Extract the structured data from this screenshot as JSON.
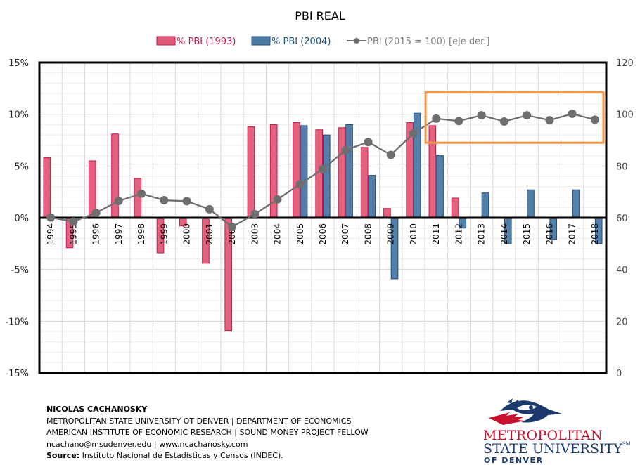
{
  "chart_data": {
    "type": "bar",
    "title": "PBI REAL",
    "xlabel": "",
    "ylabel": "",
    "y2label": "",
    "categories": [
      "1994",
      "1995",
      "1996",
      "1997",
      "1998",
      "1999",
      "2000",
      "2001",
      "2002",
      "2003",
      "2004",
      "2005",
      "2006",
      "2007",
      "2008",
      "2009",
      "2010",
      "2011",
      "2012",
      "2013",
      "2014",
      "2015",
      "2016",
      "2017",
      "2018"
    ],
    "series": [
      {
        "name": "% PBI (1993)",
        "type": "bar",
        "axis": "left",
        "color": "#E05A78",
        "border": "#C8194A",
        "values": [
          5.8,
          -2.9,
          5.5,
          8.1,
          3.8,
          -3.4,
          -0.8,
          -4.4,
          -10.9,
          8.8,
          9.0,
          9.2,
          8.5,
          8.7,
          6.8,
          0.9,
          9.2,
          8.9,
          1.9,
          null,
          null,
          null,
          null,
          null,
          null
        ]
      },
      {
        "name": "% PBI (2004)",
        "type": "bar",
        "axis": "left",
        "color": "#4A78A4",
        "border": "#1F4E79",
        "values": [
          null,
          null,
          null,
          null,
          null,
          null,
          null,
          null,
          null,
          null,
          null,
          8.9,
          8.0,
          9.0,
          4.1,
          -5.9,
          10.1,
          6.0,
          -1.0,
          2.4,
          -2.5,
          2.7,
          -2.1,
          2.7,
          -2.5
        ]
      },
      {
        "name": "PBI (2015 = 100) [eje der.]",
        "type": "line",
        "axis": "right",
        "color": "#6E6E6E",
        "marker": "circle",
        "values": [
          60.1,
          58.5,
          61.9,
          66.5,
          69.3,
          66.8,
          66.4,
          63.3,
          56.5,
          61.4,
          67.1,
          73.0,
          78.8,
          86.1,
          89.3,
          84.3,
          92.6,
          98.3,
          97.4,
          99.6,
          97.2,
          99.6,
          97.7,
          100.2,
          97.9
        ]
      }
    ],
    "ylim": [
      -15,
      15
    ],
    "yticks": [
      -15,
      -10,
      -5,
      0,
      5,
      10,
      15
    ],
    "ytick_labels": [
      "-15%",
      "-10%",
      "-5%",
      "0%",
      "5%",
      "10%",
      "15%"
    ],
    "y2lim": [
      0,
      120
    ],
    "y2ticks": [
      0,
      20,
      40,
      60,
      80,
      100,
      120
    ],
    "y2tick_labels": [
      "0",
      "20",
      "40",
      "60",
      "80",
      "100",
      "120"
    ],
    "grid": true,
    "minor_grid": true,
    "legend": "top-center",
    "annotations": [
      {
        "type": "rectangle",
        "color": "#F79646",
        "x_from": "2011",
        "x_to": "2018",
        "y2_from": 89,
        "y2_to": 108.5,
        "description": "highlight box around 2011-2018 index values"
      }
    ]
  },
  "footer": {
    "author": "NICOLAS CACHANOSKY",
    "line1": "METROPOLITAN  STATE UNIVERSITY  OT DENVER  | DEPARTMENT  OF ECONOMICS",
    "line2": "AMERICAN  INSTITUTE  OF ECONOMIC RESEARCH  | SOUND  MONEY  PROJECT FELLOW",
    "line3": "ncachano@msudenver.edu | www.ncachanosky.com",
    "source_label": "Source:",
    "source_text": " Instituto Nacional de Estadísticas y Censos (INDEC)."
  },
  "logo": {
    "word1": "METROPOLITAN",
    "word2": "STATE UNIVERSITY",
    "sm": "SM",
    "word3": "OF DENVER",
    "red": "#C8102E",
    "blue": "#1B3A6B"
  }
}
